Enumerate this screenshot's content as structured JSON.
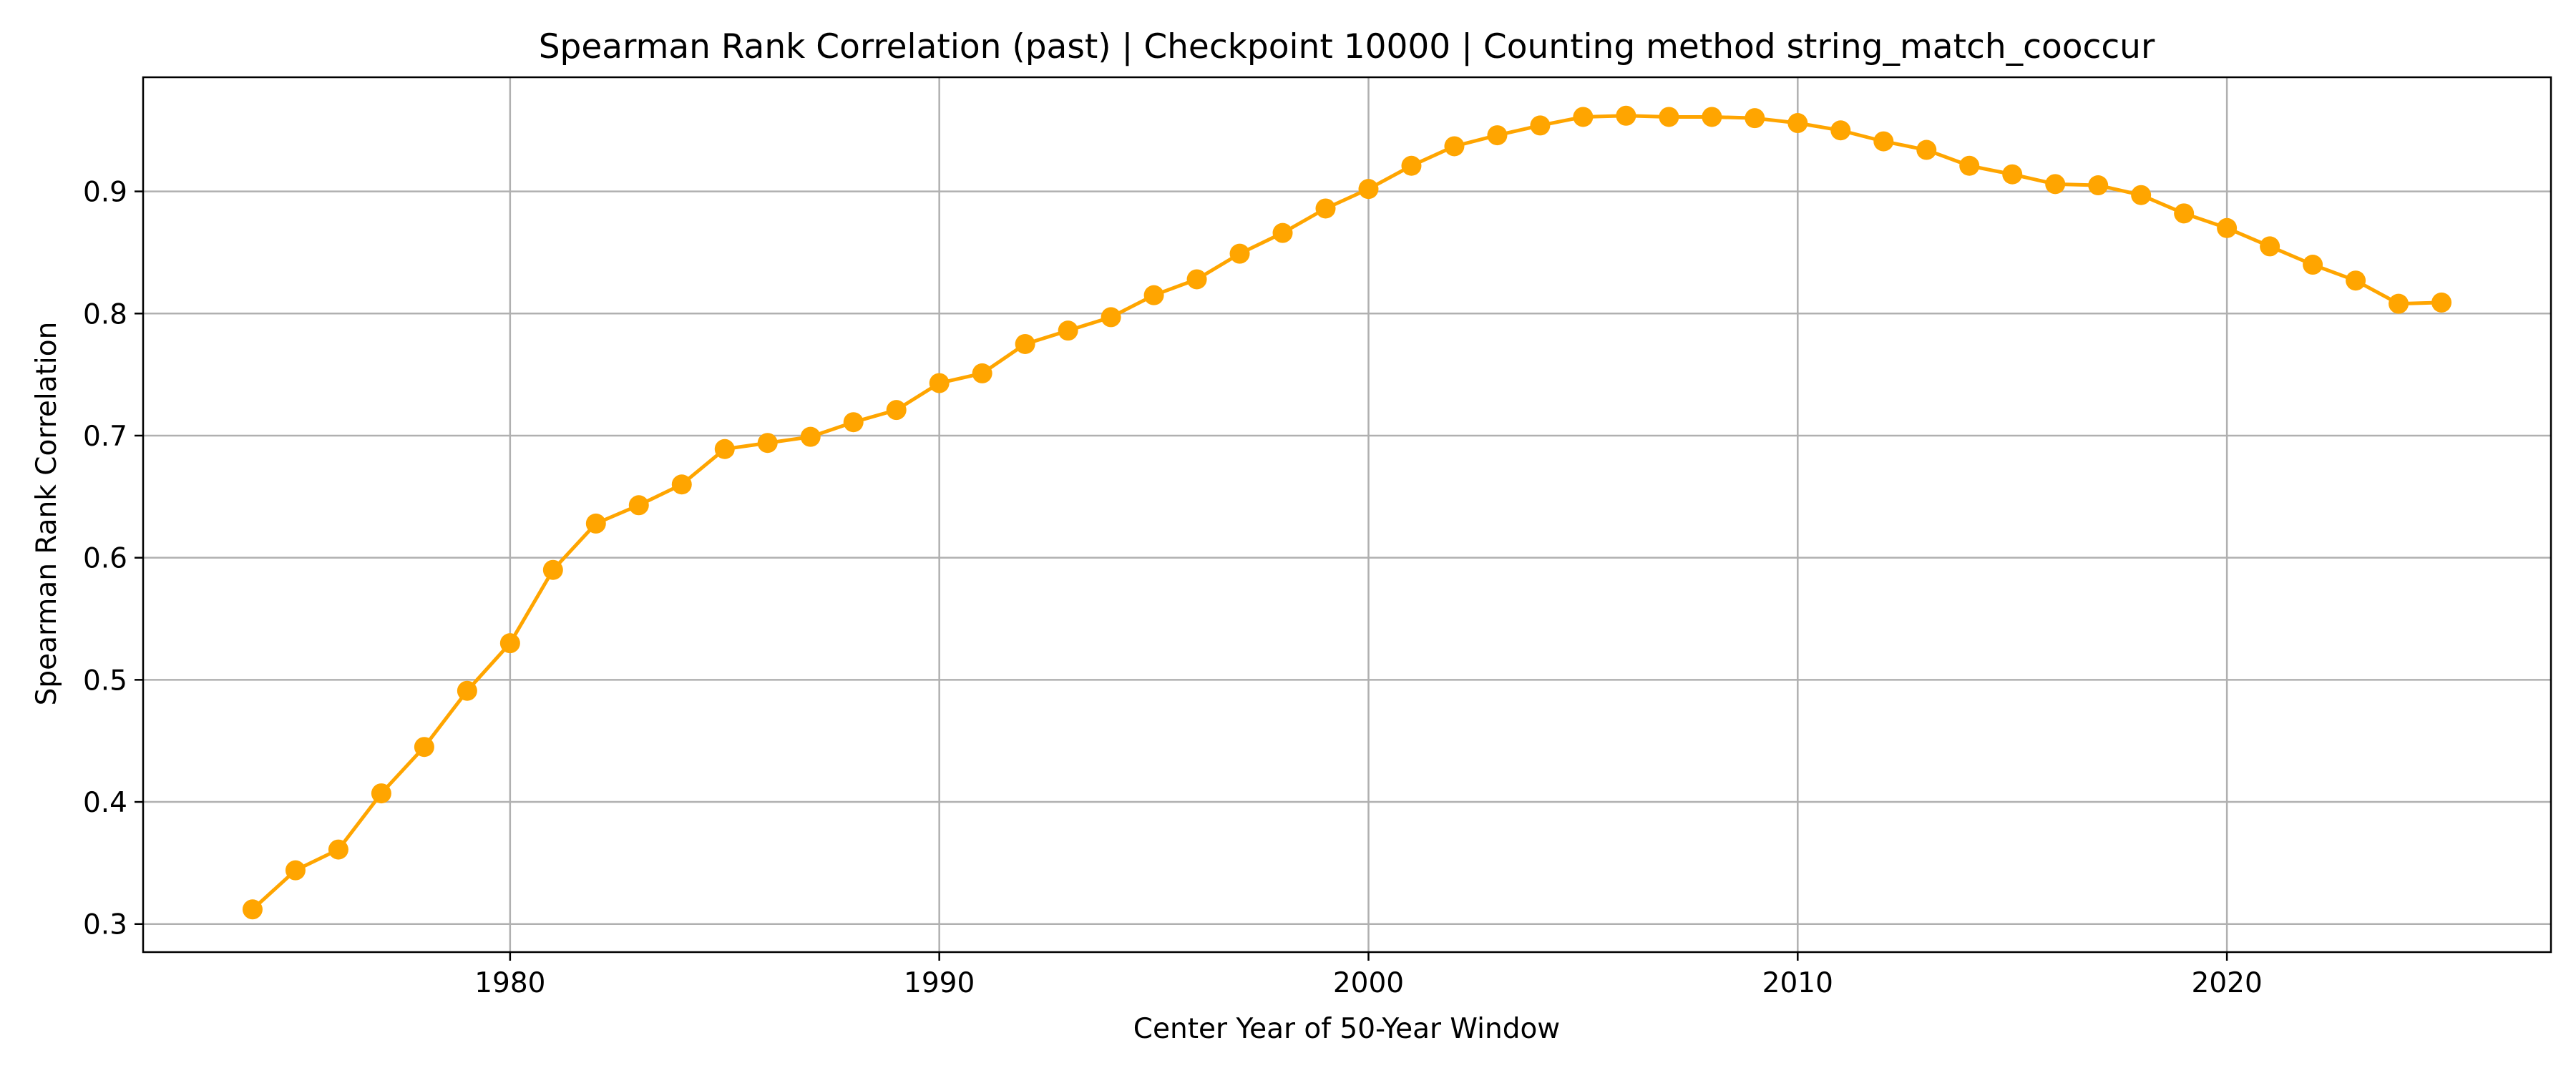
{
  "chart_data": {
    "type": "line",
    "title": "Spearman Rank Correlation (past) | Checkpoint 10000 | Counting method string_match_cooccur",
    "xlabel": "Center Year of 50-Year Window",
    "ylabel": "Spearman Rank Correlation",
    "xlim": [
      1971.45,
      2027.55
    ],
    "ylim": [
      0.277,
      0.9935
    ],
    "xticks": [
      1980,
      1990,
      2000,
      2010,
      2020
    ],
    "yticks": [
      0.3,
      0.4,
      0.5,
      0.6,
      0.7,
      0.8,
      0.9
    ],
    "ytick_labels": [
      "0.3",
      "0.4",
      "0.5",
      "0.6",
      "0.7",
      "0.8",
      "0.9"
    ],
    "grid": true,
    "legend": "none",
    "color": "#ffa500",
    "series": [
      {
        "x": [
          1974,
          1975,
          1976,
          1977,
          1978,
          1979,
          1980,
          1981,
          1982,
          1983,
          1984,
          1985,
          1986,
          1987,
          1988,
          1989,
          1990,
          1991,
          1992,
          1993,
          1994,
          1995,
          1996,
          1997,
          1998,
          1999,
          2000,
          2001,
          2002,
          2003,
          2004,
          2005,
          2006,
          2007,
          2008,
          2009,
          2010,
          2011,
          2012,
          2013,
          2014,
          2015,
          2016,
          2017,
          2018,
          2019,
          2020,
          2021,
          2022,
          2023,
          2024,
          2025
        ],
        "values": [
          0.312,
          0.344,
          0.361,
          0.407,
          0.445,
          0.491,
          0.53,
          0.59,
          0.628,
          0.643,
          0.66,
          0.689,
          0.694,
          0.699,
          0.711,
          0.721,
          0.743,
          0.751,
          0.775,
          0.786,
          0.797,
          0.815,
          0.828,
          0.849,
          0.866,
          0.886,
          0.902,
          0.921,
          0.937,
          0.946,
          0.954,
          0.961,
          0.962,
          0.961,
          0.961,
          0.96,
          0.956,
          0.95,
          0.941,
          0.934,
          0.921,
          0.914,
          0.906,
          0.905,
          0.897,
          0.882,
          0.87,
          0.855,
          0.84,
          0.827,
          0.808,
          0.809
        ]
      }
    ]
  }
}
